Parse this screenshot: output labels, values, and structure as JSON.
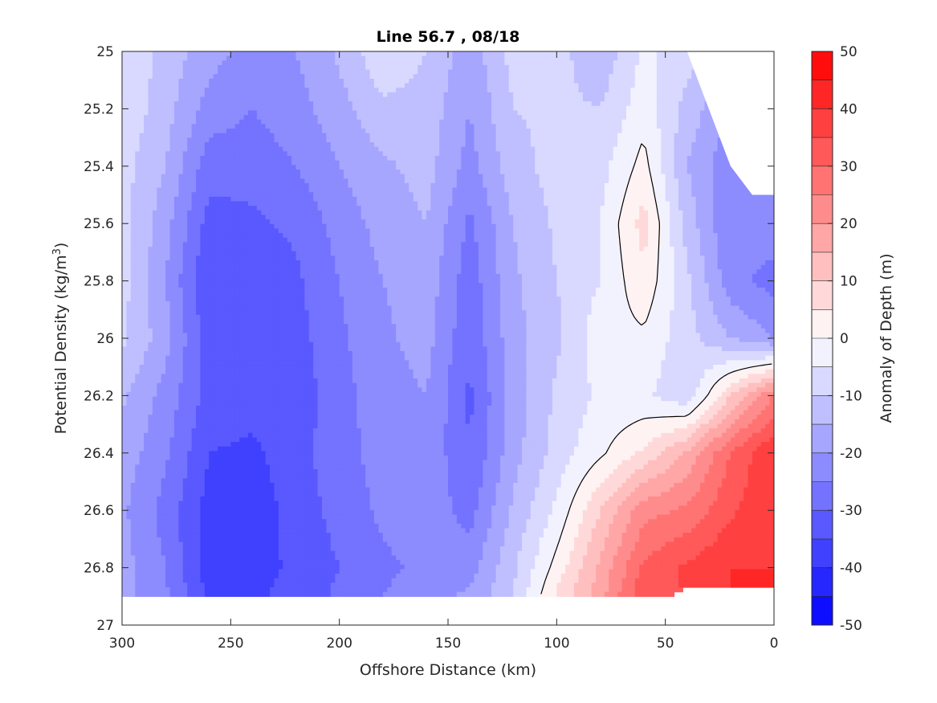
{
  "chart_data": {
    "type": "heatmap",
    "subtype": "filled-contour",
    "title": "Line 56.7 , 08/18",
    "xlabel": "Offshore Distance (km)",
    "ylabel_main": "Potential Density (kg/m",
    "ylabel_sup": "3",
    "ylabel_close": ")",
    "colorbar_label": "Anomaly of Depth (m)",
    "x_reversed": true,
    "y_reversed": true,
    "xlim": [
      0,
      300
    ],
    "ylim": [
      25,
      27
    ],
    "x_ticks": [
      "300",
      "250",
      "200",
      "150",
      "100",
      "50",
      "0"
    ],
    "y_ticks": [
      "25",
      "25.2",
      "25.4",
      "25.6",
      "25.8",
      "26",
      "26.2",
      "26.4",
      "26.6",
      "26.8",
      "27"
    ],
    "colorbar_ticks": [
      "50",
      "40",
      "30",
      "20",
      "10",
      "0",
      "-10",
      "-20",
      "-30",
      "-40",
      "-50"
    ],
    "colorbar_range": [
      -50,
      50
    ],
    "colorbar_step": 5,
    "colormap": "blue-white-red",
    "colors": {
      "min": "#0000ff",
      "mid": "#ffffff",
      "max": "#ff0000"
    },
    "black_contour_level": 0,
    "data_y_max": 26.9,
    "grid": false,
    "x_nodes": [
      300,
      280,
      260,
      240,
      220,
      200,
      180,
      160,
      140,
      120,
      100,
      80,
      60,
      40,
      20,
      0
    ],
    "y_nodes": [
      25.0,
      25.2,
      25.4,
      25.6,
      25.8,
      26.0,
      26.2,
      26.4,
      26.6,
      26.8,
      26.9
    ],
    "values": [
      [
        -5,
        -12,
        -18,
        -22,
        -20,
        -14,
        -6,
        -10,
        -18,
        -8,
        -8,
        -14,
        -4,
        -8,
        null,
        null
      ],
      [
        -6,
        -13,
        -22,
        -25,
        -22,
        -17,
        -11,
        -12,
        -20,
        -10,
        -9,
        -10,
        -2,
        -12,
        -20,
        null
      ],
      [
        -8,
        -15,
        -28,
        -28,
        -25,
        -20,
        -16,
        -13,
        -22,
        -12,
        -8,
        -7,
        2,
        -15,
        -24,
        null
      ],
      [
        -8,
        -18,
        -32,
        -31,
        -29,
        -23,
        -18,
        -15,
        -26,
        -15,
        -9,
        -5,
        7,
        -12,
        -25,
        -22
      ],
      [
        -8,
        -20,
        -35,
        -33,
        -31,
        -25,
        -20,
        -17,
        -28,
        -16,
        -10,
        -5,
        4,
        -9,
        -23,
        -27
      ],
      [
        -9,
        -18,
        -33,
        -32,
        -32,
        -26,
        -21,
        -18,
        -29,
        -17,
        -11,
        -2,
        -1,
        -8,
        -15,
        -20
      ],
      [
        -14,
        -22,
        -32,
        -33,
        -33,
        -27,
        -22,
        -20,
        -31,
        -18,
        -9,
        -4,
        -4,
        -9,
        10,
        25
      ],
      [
        -17,
        -24,
        -35,
        -36,
        -32,
        -27,
        -23,
        -21,
        -30,
        -17,
        -8,
        -1,
        6,
        16,
        30,
        40
      ],
      [
        -19,
        -27,
        -37,
        -38,
        -33,
        -28,
        -24,
        -22,
        -27,
        -14,
        -4,
        10,
        23,
        26,
        34,
        40
      ],
      [
        -18,
        -25,
        -38,
        -37,
        -34,
        -30,
        -26,
        -24,
        -22,
        -11,
        2,
        16,
        31,
        36,
        40,
        40
      ],
      [
        -18,
        -24,
        -36,
        -36,
        -33,
        -29,
        -25,
        -22,
        -19,
        -10,
        6,
        18,
        34,
        null,
        null,
        null
      ]
    ],
    "mask_offshore_top": [
      [
        40,
        25.0
      ],
      [
        20,
        25.4
      ],
      [
        10,
        25.5
      ],
      [
        0,
        25.5
      ],
      [
        0,
        26.9
      ],
      [
        38,
        26.9
      ],
      [
        38,
        26.8
      ],
      [
        26,
        26.3
      ],
      [
        18,
        26.1
      ],
      [
        8,
        26.0
      ],
      [
        3,
        25.9
      ],
      [
        0,
        25.8
      ]
    ]
  }
}
